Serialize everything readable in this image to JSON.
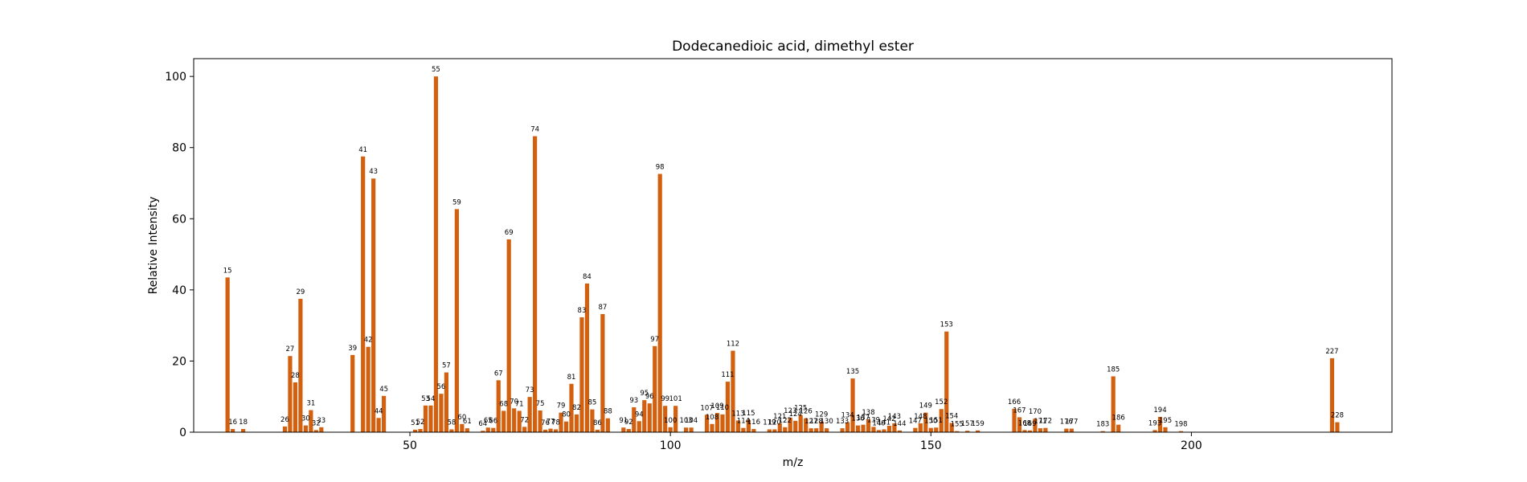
{
  "chart_data": {
    "type": "bar",
    "title": "Dodecanedioic acid, dimethyl ester",
    "xlabel": "m/z",
    "ylabel": "Relative Intensity",
    "xlim": [
      8.5,
      238.5
    ],
    "ylim": [
      0,
      105
    ],
    "xticks": [
      50,
      100,
      150,
      200
    ],
    "yticks": [
      0,
      20,
      40,
      60,
      80,
      100
    ],
    "grid": false,
    "bar_color": "#d2600f",
    "points": [
      {
        "x": 15,
        "y": 43.5
      },
      {
        "x": 16,
        "y": 0.9
      },
      {
        "x": 18,
        "y": 0.9
      },
      {
        "x": 26,
        "y": 1.6
      },
      {
        "x": 27,
        "y": 21.4
      },
      {
        "x": 28,
        "y": 14.0
      },
      {
        "x": 29,
        "y": 37.5
      },
      {
        "x": 30,
        "y": 1.9
      },
      {
        "x": 31,
        "y": 6.2
      },
      {
        "x": 32,
        "y": 0.6
      },
      {
        "x": 33,
        "y": 1.4
      },
      {
        "x": 39,
        "y": 21.7
      },
      {
        "x": 41,
        "y": 77.5
      },
      {
        "x": 42,
        "y": 24.0
      },
      {
        "x": 43,
        "y": 71.3
      },
      {
        "x": 44,
        "y": 4.0
      },
      {
        "x": 45,
        "y": 10.2
      },
      {
        "x": 51,
        "y": 0.7
      },
      {
        "x": 52,
        "y": 0.9
      },
      {
        "x": 53,
        "y": 7.5
      },
      {
        "x": 54,
        "y": 7.5
      },
      {
        "x": 55,
        "y": 100.0
      },
      {
        "x": 56,
        "y": 10.8
      },
      {
        "x": 57,
        "y": 16.8
      },
      {
        "x": 58,
        "y": 0.8
      },
      {
        "x": 59,
        "y": 62.7
      },
      {
        "x": 60,
        "y": 2.3
      },
      {
        "x": 61,
        "y": 1.1
      },
      {
        "x": 64,
        "y": 0.4
      },
      {
        "x": 65,
        "y": 1.3
      },
      {
        "x": 66,
        "y": 1.2
      },
      {
        "x": 67,
        "y": 14.6
      },
      {
        "x": 68,
        "y": 6.0
      },
      {
        "x": 69,
        "y": 54.2
      },
      {
        "x": 70,
        "y": 6.7
      },
      {
        "x": 71,
        "y": 6.0
      },
      {
        "x": 72,
        "y": 1.5
      },
      {
        "x": 73,
        "y": 9.9
      },
      {
        "x": 74,
        "y": 83.2
      },
      {
        "x": 75,
        "y": 6.1
      },
      {
        "x": 76,
        "y": 0.7
      },
      {
        "x": 77,
        "y": 1.0
      },
      {
        "x": 78,
        "y": 0.8
      },
      {
        "x": 79,
        "y": 5.5
      },
      {
        "x": 80,
        "y": 3.0
      },
      {
        "x": 81,
        "y": 13.6
      },
      {
        "x": 82,
        "y": 5.0
      },
      {
        "x": 83,
        "y": 32.3
      },
      {
        "x": 84,
        "y": 41.8
      },
      {
        "x": 85,
        "y": 6.4
      },
      {
        "x": 86,
        "y": 0.7
      },
      {
        "x": 87,
        "y": 33.2
      },
      {
        "x": 88,
        "y": 3.9
      },
      {
        "x": 91,
        "y": 1.3
      },
      {
        "x": 92,
        "y": 0.9
      },
      {
        "x": 93,
        "y": 7.0
      },
      {
        "x": 94,
        "y": 3.1
      },
      {
        "x": 95,
        "y": 9.0
      },
      {
        "x": 96,
        "y": 8.1
      },
      {
        "x": 97,
        "y": 24.2
      },
      {
        "x": 98,
        "y": 72.6
      },
      {
        "x": 99,
        "y": 7.4
      },
      {
        "x": 100,
        "y": 1.4
      },
      {
        "x": 101,
        "y": 7.4
      },
      {
        "x": 103,
        "y": 1.3
      },
      {
        "x": 104,
        "y": 1.3
      },
      {
        "x": 107,
        "y": 4.9
      },
      {
        "x": 108,
        "y": 2.3
      },
      {
        "x": 109,
        "y": 5.4
      },
      {
        "x": 110,
        "y": 5.0
      },
      {
        "x": 111,
        "y": 14.2
      },
      {
        "x": 112,
        "y": 22.9
      },
      {
        "x": 113,
        "y": 3.3
      },
      {
        "x": 114,
        "y": 1.2
      },
      {
        "x": 115,
        "y": 3.4
      },
      {
        "x": 116,
        "y": 0.9
      },
      {
        "x": 119,
        "y": 0.8
      },
      {
        "x": 120,
        "y": 0.8
      },
      {
        "x": 121,
        "y": 2.5
      },
      {
        "x": 122,
        "y": 1.4
      },
      {
        "x": 123,
        "y": 4.1
      },
      {
        "x": 124,
        "y": 3.2
      },
      {
        "x": 125,
        "y": 4.8
      },
      {
        "x": 126,
        "y": 3.9
      },
      {
        "x": 127,
        "y": 1.1
      },
      {
        "x": 128,
        "y": 1.1
      },
      {
        "x": 129,
        "y": 3.0
      },
      {
        "x": 130,
        "y": 1.1
      },
      {
        "x": 133,
        "y": 1.1
      },
      {
        "x": 134,
        "y": 2.8
      },
      {
        "x": 135,
        "y": 15.1
      },
      {
        "x": 136,
        "y": 1.9
      },
      {
        "x": 137,
        "y": 2.1
      },
      {
        "x": 138,
        "y": 3.6
      },
      {
        "x": 139,
        "y": 1.5
      },
      {
        "x": 140,
        "y": 0.6
      },
      {
        "x": 141,
        "y": 0.8
      },
      {
        "x": 142,
        "y": 1.8
      },
      {
        "x": 143,
        "y": 2.5
      },
      {
        "x": 144,
        "y": 0.5
      },
      {
        "x": 147,
        "y": 1.2
      },
      {
        "x": 148,
        "y": 2.5
      },
      {
        "x": 149,
        "y": 5.5
      },
      {
        "x": 150,
        "y": 1.2
      },
      {
        "x": 151,
        "y": 1.3
      },
      {
        "x": 152,
        "y": 6.5
      },
      {
        "x": 153,
        "y": 28.3
      },
      {
        "x": 154,
        "y": 2.6
      },
      {
        "x": 155,
        "y": 0.3
      },
      {
        "x": 157,
        "y": 0.4
      },
      {
        "x": 159,
        "y": 0.5
      },
      {
        "x": 166,
        "y": 6.6
      },
      {
        "x": 167,
        "y": 4.2
      },
      {
        "x": 168,
        "y": 0.6
      },
      {
        "x": 169,
        "y": 0.5
      },
      {
        "x": 170,
        "y": 3.8
      },
      {
        "x": 171,
        "y": 1.1
      },
      {
        "x": 172,
        "y": 1.2
      },
      {
        "x": 176,
        "y": 1.0
      },
      {
        "x": 177,
        "y": 1.0
      },
      {
        "x": 183,
        "y": 0.3
      },
      {
        "x": 185,
        "y": 15.7
      },
      {
        "x": 186,
        "y": 2.1
      },
      {
        "x": 193,
        "y": 0.6
      },
      {
        "x": 194,
        "y": 4.3
      },
      {
        "x": 195,
        "y": 1.4
      },
      {
        "x": 198,
        "y": 0.3
      },
      {
        "x": 227,
        "y": 20.8
      },
      {
        "x": 228,
        "y": 2.8
      }
    ]
  }
}
